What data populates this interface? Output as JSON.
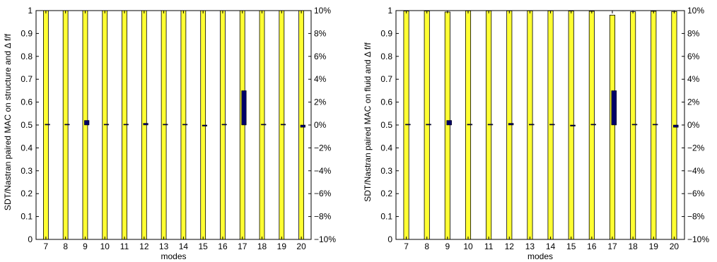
{
  "chart_data": [
    {
      "type": "bar",
      "ylabel": "SDT/Nastran paired MAC on structure and Δ f/f",
      "xlabel": "modes",
      "categories": [
        "7",
        "8",
        "9",
        "10",
        "11",
        "12",
        "13",
        "14",
        "15",
        "16",
        "17",
        "18",
        "19",
        "20"
      ],
      "ylim": [
        0,
        1
      ],
      "y_ticks": [
        "0",
        "0.1",
        "0.2",
        "0.3",
        "0.4",
        "0.5",
        "0.6",
        "0.7",
        "0.8",
        "0.9",
        "1"
      ],
      "y2lim": [
        -10,
        10
      ],
      "y2_ticks": [
        "−10%",
        "−8%",
        "−6%",
        "−4%",
        "−2%",
        "0%",
        "2%",
        "4%",
        "6%",
        "8%",
        "10%"
      ],
      "series": [
        {
          "axis": "left",
          "color": "#ffff33",
          "values": [
            1.0,
            1.0,
            1.0,
            1.0,
            1.0,
            1.0,
            1.0,
            1.0,
            1.0,
            1.0,
            1.0,
            1.0,
            1.0,
            1.0
          ]
        },
        {
          "axis": "right",
          "unit": "%",
          "color": "#000066",
          "values": [
            0.05,
            0.0,
            0.4,
            0.0,
            0.05,
            0.15,
            0.0,
            0.0,
            -0.1,
            0.05,
            3.0,
            0.05,
            0.05,
            -0.2
          ]
        }
      ],
      "grid": false
    },
    {
      "type": "bar",
      "ylabel": "SDT/Nastran paired MAC on fluid and Δ f/f",
      "xlabel": "modes",
      "categories": [
        "7",
        "8",
        "9",
        "10",
        "11",
        "12",
        "13",
        "14",
        "15",
        "16",
        "17",
        "18",
        "19",
        "20"
      ],
      "ylim": [
        0,
        1
      ],
      "y_ticks": [
        "0",
        "0.1",
        "0.2",
        "0.3",
        "0.4",
        "0.5",
        "0.6",
        "0.7",
        "0.8",
        "0.9",
        "1"
      ],
      "y2lim": [
        -10,
        10
      ],
      "y2_ticks": [
        "−10%",
        "−8%",
        "−6%",
        "−4%",
        "−2%",
        "0%",
        "2%",
        "4%",
        "6%",
        "8%",
        "10%"
      ],
      "series": [
        {
          "axis": "left",
          "color": "#ffff33",
          "values": [
            0.998,
            0.998,
            0.994,
            0.999,
            0.999,
            0.999,
            0.999,
            0.999,
            0.998,
            0.997,
            0.98,
            0.995,
            0.997,
            0.996
          ]
        },
        {
          "axis": "right",
          "unit": "%",
          "color": "#000066",
          "values": [
            0.05,
            0.0,
            0.4,
            0.0,
            0.05,
            0.15,
            0.0,
            0.0,
            -0.1,
            0.05,
            3.0,
            0.05,
            0.05,
            -0.2
          ]
        }
      ],
      "grid": false
    }
  ]
}
